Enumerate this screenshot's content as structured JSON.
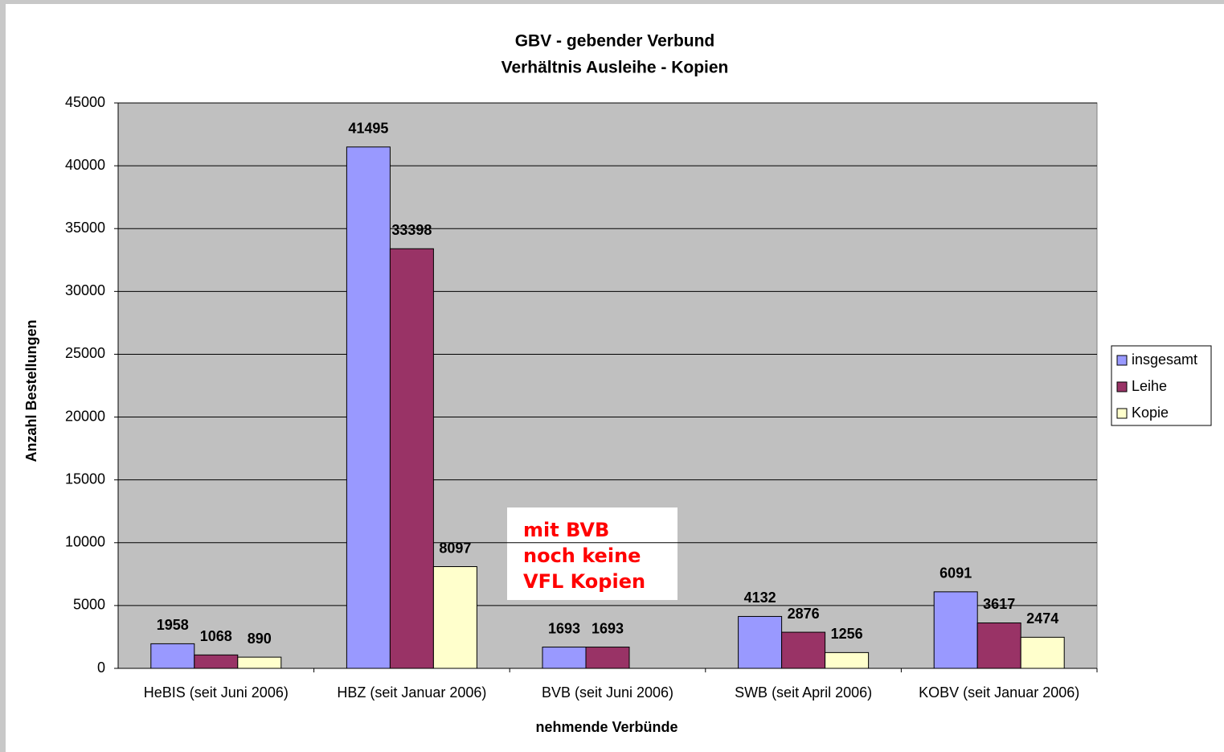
{
  "chart_data": {
    "type": "bar",
    "title": "GBV - gebender Verbund",
    "subtitle": "Verhältnis Ausleihe - Kopien",
    "x_label": "nehmende Verbünde",
    "y_label": "Anzahl Bestellungen",
    "categories": [
      "HeBIS (seit Juni 2006)",
      "HBZ (seit Januar 2006)",
      "BVB (seit Juni 2006)",
      "SWB (seit April 2006)",
      "KOBV (seit Januar 2006)"
    ],
    "series": [
      {
        "name": "insgesamt",
        "color": "#9999ff",
        "values": [
          1958,
          41495,
          1693,
          4132,
          6091
        ]
      },
      {
        "name": "Leihe",
        "color": "#993366",
        "values": [
          1068,
          33398,
          1693,
          2876,
          3617
        ]
      },
      {
        "name": "Kopie",
        "color": "#ffffcc",
        "values": [
          890,
          8097,
          null,
          1256,
          2474
        ]
      }
    ],
    "annotation": [
      "mit BVB",
      "noch keine",
      "VFL Kopien"
    ],
    "ylim": [
      0,
      45000
    ],
    "yticks": [
      0,
      5000,
      10000,
      15000,
      20000,
      25000,
      30000,
      35000,
      40000,
      45000
    ],
    "grid": true,
    "legend": "right"
  }
}
